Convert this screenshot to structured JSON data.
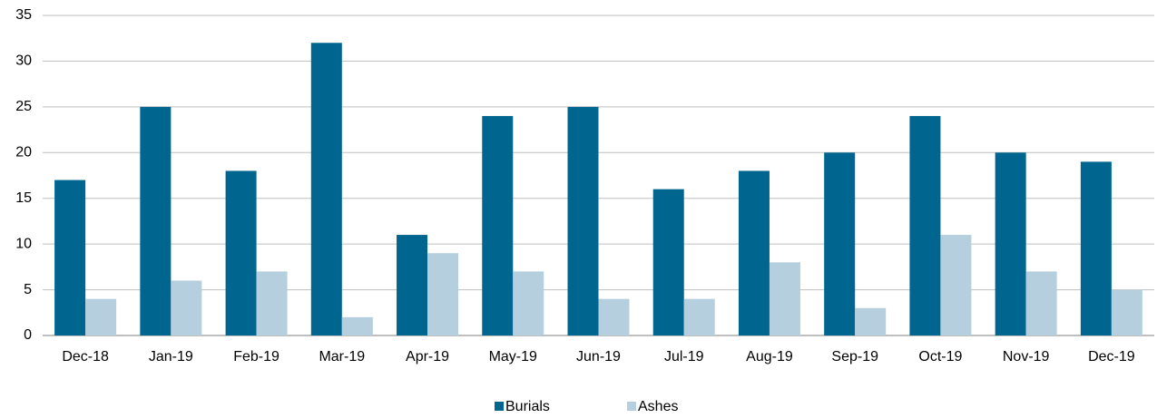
{
  "chart_data": {
    "type": "bar",
    "categories": [
      "Dec-18",
      "Jan-19",
      "Feb-19",
      "Mar-19",
      "Apr-19",
      "May-19",
      "Jun-19",
      "Jul-19",
      "Aug-19",
      "Sep-19",
      "Oct-19",
      "Nov-19",
      "Dec-19"
    ],
    "series": [
      {
        "name": "Burials",
        "color": "#00668f",
        "values": [
          17,
          25,
          18,
          32,
          11,
          24,
          25,
          16,
          18,
          20,
          24,
          20,
          19
        ]
      },
      {
        "name": "Ashes",
        "color": "#b5cfde",
        "values": [
          4,
          6,
          7,
          2,
          9,
          7,
          4,
          4,
          8,
          3,
          11,
          7,
          5
        ]
      }
    ],
    "ylim": [
      0,
      35
    ],
    "yticks": [
      0,
      5,
      10,
      15,
      20,
      25,
      30,
      35
    ],
    "grid": true,
    "legend": "bottom"
  }
}
